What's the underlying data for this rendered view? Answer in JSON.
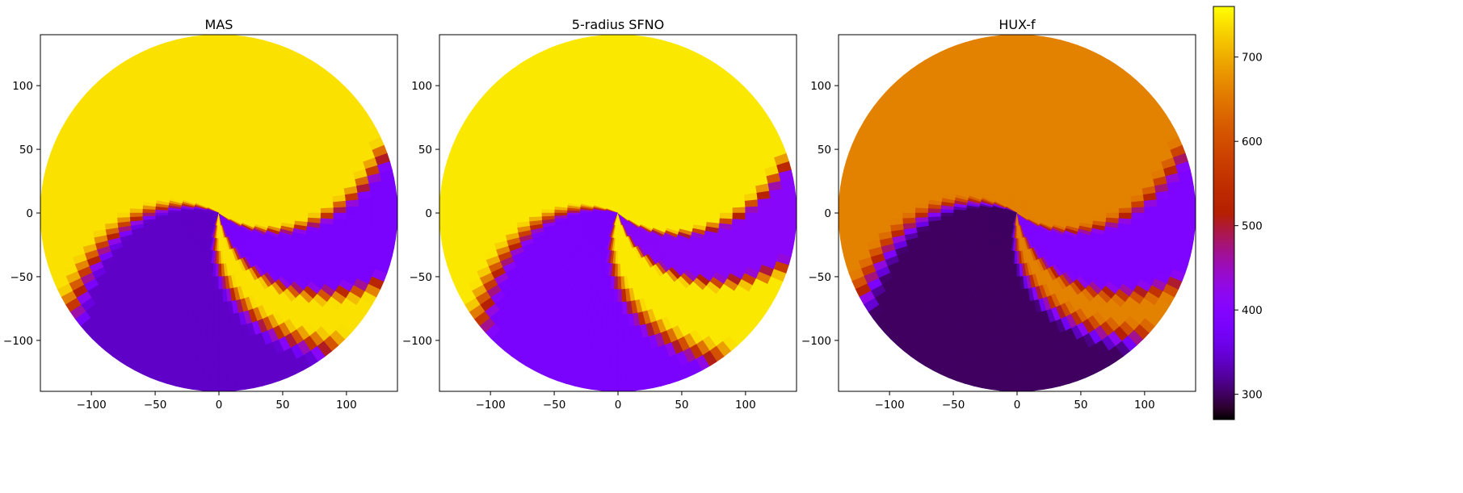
{
  "chart_data": [
    {
      "type": "heatmap",
      "projection": "polar",
      "title": "MAS",
      "xlim": [
        -140,
        140
      ],
      "ylim": [
        -140,
        140
      ],
      "xticks": [
        -100,
        -50,
        0,
        50,
        100
      ],
      "yticks": [
        -100,
        -50,
        0,
        50,
        100
      ],
      "xtick_labels": [
        "−100",
        "−50",
        "0",
        "50",
        "100"
      ],
      "ytick_labels": [
        "−100",
        "−50",
        "0",
        "50",
        "100"
      ],
      "radius": 140,
      "high_value": 740,
      "sectors": [
        {
          "name": "purple-spiral-arm",
          "start_angle_deg": 165,
          "end_angle_deg": 245,
          "low_value": 340
        },
        {
          "name": "second-purple-arm",
          "start_angle_deg": 285,
          "end_angle_deg": 318,
          "low_value": 380
        }
      ]
    },
    {
      "type": "heatmap",
      "projection": "polar",
      "title": "5-radius SFNO",
      "xlim": [
        -140,
        140
      ],
      "ylim": [
        -140,
        140
      ],
      "xticks": [
        -100,
        -50,
        0,
        50,
        100
      ],
      "yticks": [
        -100,
        -50,
        0,
        50,
        100
      ],
      "xtick_labels": [
        "−100",
        "−50",
        "0",
        "50",
        "100"
      ],
      "ytick_labels": [
        "−100",
        "−50",
        "0",
        "50",
        "100"
      ],
      "radius": 140,
      "high_value": 745,
      "sectors": [
        {
          "name": "purple-spiral-arm",
          "start_angle_deg": 170,
          "end_angle_deg": 240,
          "low_value": 380
        },
        {
          "name": "second-purple-arm",
          "start_angle_deg": 290,
          "end_angle_deg": 316,
          "low_value": 410
        }
      ]
    },
    {
      "type": "heatmap",
      "projection": "polar",
      "title": "HUX-f",
      "xlim": [
        -140,
        140
      ],
      "ylim": [
        -140,
        140
      ],
      "xticks": [
        -100,
        -50,
        0,
        50,
        100
      ],
      "yticks": [
        -100,
        -50,
        0,
        50,
        100
      ],
      "xtick_labels": [
        "−100",
        "−50",
        "0",
        "50",
        "100"
      ],
      "ytick_labels": [
        "−100",
        "−50",
        "0",
        "50",
        "100"
      ],
      "radius": 140,
      "high_value": 660,
      "sectors": [
        {
          "name": "dark-spiral-arm",
          "start_angle_deg": 160,
          "end_angle_deg": 250,
          "low_value": 300
        },
        {
          "name": "second-purple-arm",
          "start_angle_deg": 285,
          "end_angle_deg": 318,
          "low_value": 390
        }
      ]
    }
  ],
  "colorbar": {
    "colormap": "gnuplot",
    "vmin": 270,
    "vmax": 760,
    "ticks": [
      300,
      400,
      500,
      600,
      700
    ],
    "tick_labels": [
      "300",
      "400",
      "500",
      "600",
      "700"
    ]
  }
}
